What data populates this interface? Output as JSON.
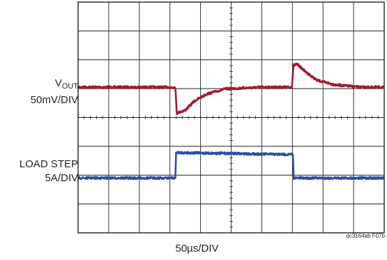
{
  "chart_data": {
    "type": "line",
    "title": "",
    "xlabel": "50µs/DIV",
    "x_divisions": 10,
    "y_divisions": 8,
    "x_unit": "µs",
    "x_per_div": 50,
    "xlim": [
      0,
      500
    ],
    "grid": true,
    "series": [
      {
        "name": "VOUT",
        "channel_label": {
          "main": "V",
          "sub": "OUT",
          "scale": "50mV/DIV"
        },
        "color": "#9e1b32",
        "baseline_div": 5.05,
        "unit_per_div_mV": 50,
        "x": [
          0,
          159,
          161,
          175,
          190,
          210,
          240,
          300,
          330,
          349,
          352,
          358,
          370,
          390,
          420,
          460,
          500
        ],
        "deviation_mV": [
          0,
          0,
          -45,
          -40,
          -24,
          -12,
          -3,
          0,
          0,
          0,
          38,
          40,
          28,
          12,
          4,
          0,
          0
        ]
      },
      {
        "name": "LOAD STEP",
        "channel_label": {
          "main": "LOAD STEP",
          "scale": "5A/DIV"
        },
        "color": "#2e4f9e",
        "baseline_div": 1.9,
        "unit_per_div_A": 5,
        "x": [
          0,
          159,
          160,
          163,
          330,
          351,
          352,
          500
        ],
        "step_A": [
          0,
          0,
          4.4,
          4.4,
          4.1,
          4.1,
          0,
          0
        ]
      }
    ]
  },
  "labels": {
    "vout_main": "V",
    "vout_sub": "OUT",
    "vout_scale": "50mV/DIV",
    "load_line1": "LOAD STEP",
    "load_line2": "5A/DIV",
    "x_scale": "50µs/DIV",
    "fig_code": "dc3164ab F07b"
  }
}
